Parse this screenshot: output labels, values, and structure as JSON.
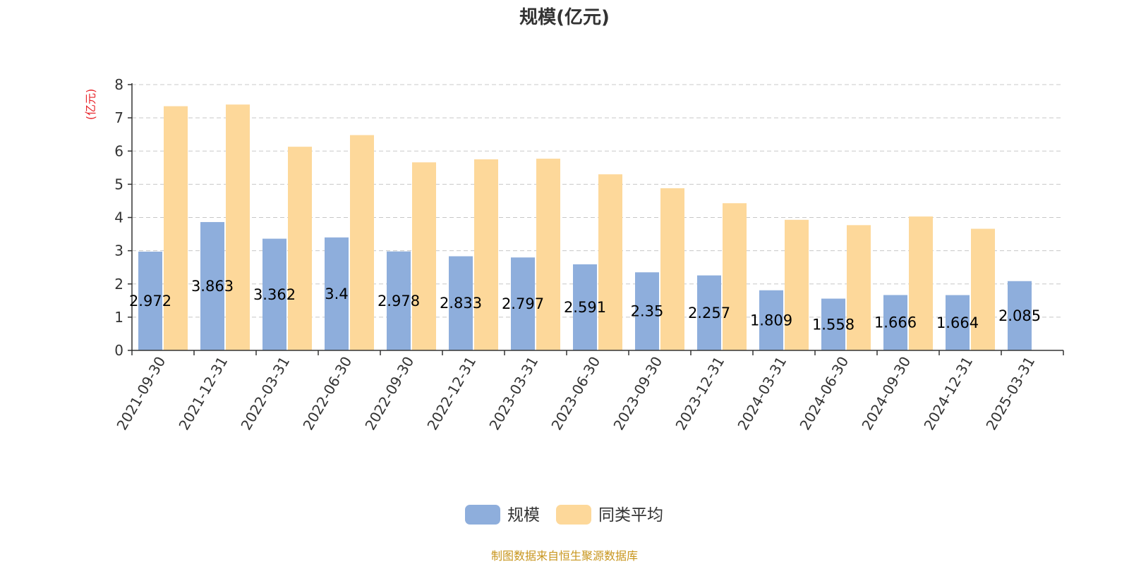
{
  "chart_data": {
    "type": "bar",
    "title": "规模(亿元)",
    "ylabel": "(亿元)",
    "xlabel": "",
    "ylim": [
      0,
      8
    ],
    "yticks": [
      0,
      1,
      2,
      3,
      4,
      5,
      6,
      7,
      8
    ],
    "grid": true,
    "legend_position": "bottom-center",
    "categories": [
      "2021-09-30",
      "2021-12-31",
      "2022-03-31",
      "2022-06-30",
      "2022-09-30",
      "2022-12-31",
      "2023-03-31",
      "2023-06-30",
      "2023-09-30",
      "2023-12-31",
      "2024-03-31",
      "2024-06-30",
      "2024-09-30",
      "2024-12-31",
      "2025-03-31"
    ],
    "series": [
      {
        "name": "规模",
        "color": "#8eaedc",
        "values": [
          2.972,
          3.863,
          3.362,
          3.4,
          2.978,
          2.833,
          2.797,
          2.591,
          2.35,
          2.257,
          1.809,
          1.558,
          1.666,
          1.664,
          2.085
        ],
        "labels": [
          "2.972",
          "3.863",
          "3.362",
          "3.4",
          "2.978",
          "2.833",
          "2.797",
          "2.591",
          "2.35",
          "2.257",
          "1.809",
          "1.558",
          "1.666",
          "1.664",
          "2.085"
        ]
      },
      {
        "name": "同类平均",
        "color": "#fdd89a",
        "values": [
          7.35,
          7.4,
          6.13,
          6.48,
          5.66,
          5.75,
          5.77,
          5.3,
          4.88,
          4.43,
          3.93,
          3.77,
          4.03,
          3.66,
          null
        ]
      }
    ]
  },
  "source_text": "制图数据来自恒生聚源数据库"
}
